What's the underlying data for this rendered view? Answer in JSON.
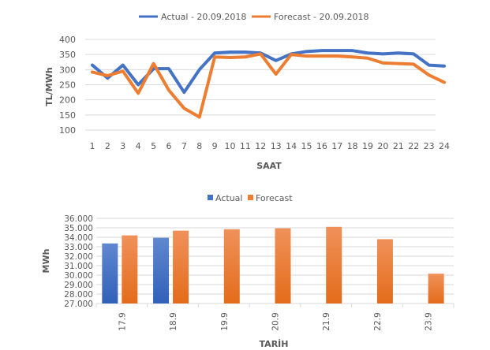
{
  "colors": {
    "actual": "#4472C4",
    "forecast": "#ED7D31"
  },
  "chart_data": [
    {
      "type": "line",
      "title": "",
      "xlabel": "SAAT",
      "ylabel": "TL/MWh",
      "ylim": [
        100,
        400
      ],
      "yticks": [
        "100",
        "150",
        "200",
        "250",
        "300",
        "350",
        "400"
      ],
      "x": [
        "1",
        "2",
        "3",
        "4",
        "5",
        "6",
        "7",
        "8",
        "9",
        "10",
        "11",
        "12",
        "13",
        "14",
        "15",
        "16",
        "17",
        "18",
        "19",
        "20",
        "21",
        "22",
        "23",
        "24"
      ],
      "legend_position": "top",
      "grid": true,
      "series": [
        {
          "name": "Actual - 20.09.2018",
          "values": [
            315,
            272,
            315,
            250,
            303,
            303,
            225,
            300,
            355,
            358,
            358,
            355,
            330,
            352,
            360,
            363,
            363,
            363,
            355,
            352,
            355,
            352,
            315,
            312
          ]
        },
        {
          "name": "Forecast - 20.09.2018",
          "values": [
            292,
            280,
            295,
            222,
            320,
            232,
            172,
            143,
            342,
            340,
            342,
            352,
            285,
            350,
            345,
            345,
            345,
            342,
            338,
            322,
            320,
            318,
            282,
            258
          ]
        }
      ]
    },
    {
      "type": "bar",
      "title": "",
      "xlabel": "TARİH",
      "ylabel": "MWh",
      "ylim": [
        27000,
        36000
      ],
      "yticks": [
        "27.000",
        "28.000",
        "29.000",
        "30.000",
        "31.000",
        "32.000",
        "33.000",
        "34.000",
        "35.000",
        "36.000"
      ],
      "categories": [
        "17.9",
        "18.9",
        "19.9",
        "20.9",
        "21.9",
        "22.9",
        "23.9"
      ],
      "legend_position": "top",
      "grid": true,
      "series": [
        {
          "name": "Actual",
          "values": [
            33350,
            33950,
            null,
            null,
            null,
            null,
            null
          ]
        },
        {
          "name": "Forecast",
          "values": [
            34200,
            34700,
            34850,
            34950,
            35100,
            33800,
            30150
          ]
        }
      ]
    }
  ]
}
